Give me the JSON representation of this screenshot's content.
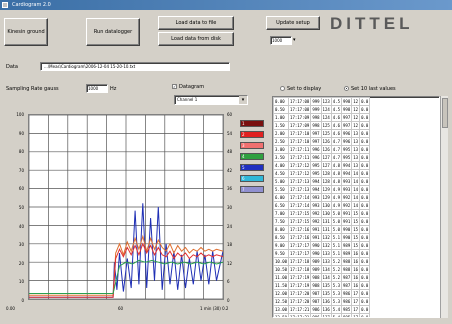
{
  "window": {
    "title": "Cardiogram 2.0"
  },
  "toolbar": {
    "btn_1": "Kinesin ground",
    "btn_2": "Run datalogger",
    "btn_3": "Load data to file",
    "btn_4": "Load data from disk",
    "btn_5": "Update setup",
    "spin_value": "1000",
    "spin_arrow": "▾"
  },
  "brand": {
    "name": "DITTEL"
  },
  "file": {
    "label": "Data",
    "value1": "...\\Meas\\Cardiogram",
    "value2": "\\2006-12-04 15-20-10.txt"
  },
  "controls": {
    "sampling_label": "Sampling Rate   gauss",
    "sampling_value": "1000",
    "sampling_unit": "Hz",
    "checkbox_label": "Datagram",
    "checkbox_mark": "✓",
    "dropdown_value": "Channel 1",
    "dropdown_arrow": "▾",
    "radio1_label": "Set to display",
    "radio2_label": "Set 10 last values"
  },
  "chart_data": {
    "type": "line",
    "title": "",
    "xlabel": "",
    "ylabel": "",
    "xlim": [
      0,
      3000
    ],
    "ylim": [
      0,
      100
    ],
    "y_ticks": [
      "100",
      "90",
      "80",
      "70",
      "60",
      "50",
      "40",
      "30",
      "20",
      "10",
      "0"
    ],
    "y_ticks_right": [
      "60",
      "54",
      "48",
      "42",
      "36",
      "30",
      "24",
      "18",
      "12",
      "6",
      "0"
    ],
    "x_start_label": "0.00",
    "x_mid_label": "60",
    "x_end_label": "1 min (30) 0.2",
    "grid": true,
    "legend_placement": "right",
    "series": [
      {
        "color": "#1f2fb5",
        "x": [
          0,
          1300,
          1320,
          1360,
          1400,
          1460,
          1520,
          1580,
          1640,
          1700,
          1760,
          1820,
          1880,
          1940,
          2000,
          2060,
          2120,
          2180,
          2240,
          2300,
          2360,
          2420,
          2480,
          2540,
          2600,
          2660,
          2720,
          2780,
          2840,
          2900,
          3000
        ],
        "y": [
          1,
          1,
          20,
          5,
          25,
          4,
          22,
          6,
          48,
          8,
          52,
          6,
          44,
          10,
          50,
          5,
          30,
          8,
          26,
          5,
          24,
          6,
          22,
          8,
          26,
          10,
          24,
          8,
          26,
          10,
          26
        ]
      },
      {
        "color": "#e07030",
        "x": [
          0,
          1300,
          1340,
          1400,
          1460,
          1520,
          1580,
          1640,
          1700,
          1760,
          1820,
          1880,
          1940,
          2000,
          2060,
          2120,
          2180,
          2240,
          2300,
          2360,
          2420,
          2480,
          2540,
          2600,
          2660,
          2720,
          2780,
          2840,
          2900,
          3000
        ],
        "y": [
          2,
          2,
          25,
          30,
          24,
          31,
          26,
          33,
          27,
          34,
          26,
          33,
          27,
          32,
          28,
          26,
          30,
          25,
          29,
          26,
          28,
          25,
          27,
          26,
          28,
          26,
          27,
          26,
          27,
          26
        ]
      },
      {
        "color": "#e23030",
        "x": [
          0,
          1300,
          1340,
          1400,
          1460,
          1520,
          1580,
          1640,
          1700,
          1760,
          1820,
          1880,
          1940,
          2000,
          2060,
          2120,
          2180,
          2240,
          2300,
          2360,
          2420,
          2480,
          2540,
          2600,
          2660,
          2720,
          2780,
          2840,
          2900,
          3000
        ],
        "y": [
          1,
          1,
          22,
          27,
          23,
          28,
          24,
          29,
          24,
          30,
          25,
          29,
          24,
          28,
          24,
          23,
          26,
          22,
          25,
          23,
          25,
          22,
          24,
          23,
          25,
          23,
          24,
          23,
          24,
          23
        ]
      },
      {
        "color": "#2aa050",
        "x": [
          0,
          1300,
          1400,
          1500,
          1600,
          1700,
          1800,
          1900,
          2000,
          2100,
          2200,
          2300,
          2400,
          2500,
          2600,
          2700,
          2800,
          2900,
          3000
        ],
        "y": [
          3,
          3,
          18,
          20,
          19,
          21,
          20,
          21,
          20,
          19,
          20,
          19,
          20,
          19,
          20,
          19,
          20,
          19,
          20
        ]
      }
    ]
  },
  "legend": {
    "items": [
      {
        "color": "#7a1010",
        "text": "1"
      },
      {
        "color": "#e02020",
        "text": "2"
      },
      {
        "color": "#f07070",
        "text": "3"
      },
      {
        "color": "#30a040",
        "text": "4"
      },
      {
        "color": "#2030c0",
        "text": "5"
      },
      {
        "color": "#30b8d8",
        "text": "6"
      },
      {
        "color": "#9090d0",
        "text": "7"
      }
    ]
  },
  "table": {
    "rows": [
      [
        "0.00",
        "17:17:08",
        "999",
        "123",
        "4.5",
        "998",
        "12",
        "0.0"
      ],
      [
        "0.50",
        "17:17:08",
        "999",
        "124",
        "4.5",
        "998",
        "12",
        "0.0"
      ],
      [
        "1.00",
        "17:17:09",
        "998",
        "124",
        "4.6",
        "997",
        "12",
        "0.0"
      ],
      [
        "1.50",
        "17:17:09",
        "998",
        "125",
        "4.6",
        "997",
        "12",
        "0.0"
      ],
      [
        "2.00",
        "17:17:10",
        "997",
        "125",
        "4.6",
        "996",
        "13",
        "0.0"
      ],
      [
        "2.50",
        "17:17:10",
        "997",
        "126",
        "4.7",
        "996",
        "13",
        "0.0"
      ],
      [
        "3.00",
        "17:17:11",
        "996",
        "126",
        "4.7",
        "995",
        "13",
        "0.0"
      ],
      [
        "3.50",
        "17:17:11",
        "996",
        "127",
        "4.7",
        "995",
        "13",
        "0.0"
      ],
      [
        "4.00",
        "17:17:12",
        "995",
        "127",
        "4.8",
        "994",
        "13",
        "0.0"
      ],
      [
        "4.50",
        "17:17:12",
        "995",
        "128",
        "4.8",
        "994",
        "14",
        "0.0"
      ],
      [
        "5.00",
        "17:17:13",
        "994",
        "128",
        "4.8",
        "993",
        "14",
        "0.0"
      ],
      [
        "5.50",
        "17:17:13",
        "994",
        "129",
        "4.9",
        "993",
        "14",
        "0.0"
      ],
      [
        "6.00",
        "17:17:14",
        "993",
        "129",
        "4.9",
        "992",
        "14",
        "0.0"
      ],
      [
        "6.50",
        "17:17:14",
        "993",
        "130",
        "4.9",
        "992",
        "14",
        "0.0"
      ],
      [
        "7.00",
        "17:17:15",
        "992",
        "130",
        "5.0",
        "991",
        "15",
        "0.0"
      ],
      [
        "7.50",
        "17:17:15",
        "992",
        "131",
        "5.0",
        "991",
        "15",
        "0.0"
      ],
      [
        "8.00",
        "17:17:16",
        "991",
        "131",
        "5.0",
        "990",
        "15",
        "0.0"
      ],
      [
        "8.50",
        "17:17:16",
        "991",
        "132",
        "5.1",
        "990",
        "15",
        "0.0"
      ],
      [
        "9.00",
        "17:17:17",
        "990",
        "132",
        "5.1",
        "989",
        "15",
        "0.0"
      ],
      [
        "9.50",
        "17:17:17",
        "990",
        "133",
        "5.1",
        "989",
        "16",
        "0.0"
      ],
      [
        "10.00",
        "17:17:18",
        "989",
        "133",
        "5.2",
        "988",
        "16",
        "0.0"
      ],
      [
        "10.50",
        "17:17:18",
        "989",
        "134",
        "5.2",
        "988",
        "16",
        "0.0"
      ],
      [
        "11.00",
        "17:17:19",
        "988",
        "134",
        "5.2",
        "987",
        "16",
        "0.0"
      ],
      [
        "11.50",
        "17:17:19",
        "988",
        "135",
        "5.3",
        "987",
        "16",
        "0.0"
      ],
      [
        "12.00",
        "17:17:20",
        "987",
        "135",
        "5.3",
        "986",
        "17",
        "0.0"
      ],
      [
        "12.50",
        "17:17:20",
        "987",
        "136",
        "5.3",
        "986",
        "17",
        "0.0"
      ],
      [
        "13.00",
        "17:17:21",
        "986",
        "136",
        "5.4",
        "985",
        "17",
        "0.0"
      ],
      [
        "13.50",
        "17:17:21",
        "986",
        "137",
        "5.4",
        "985",
        "17",
        "0.0"
      ]
    ]
  }
}
